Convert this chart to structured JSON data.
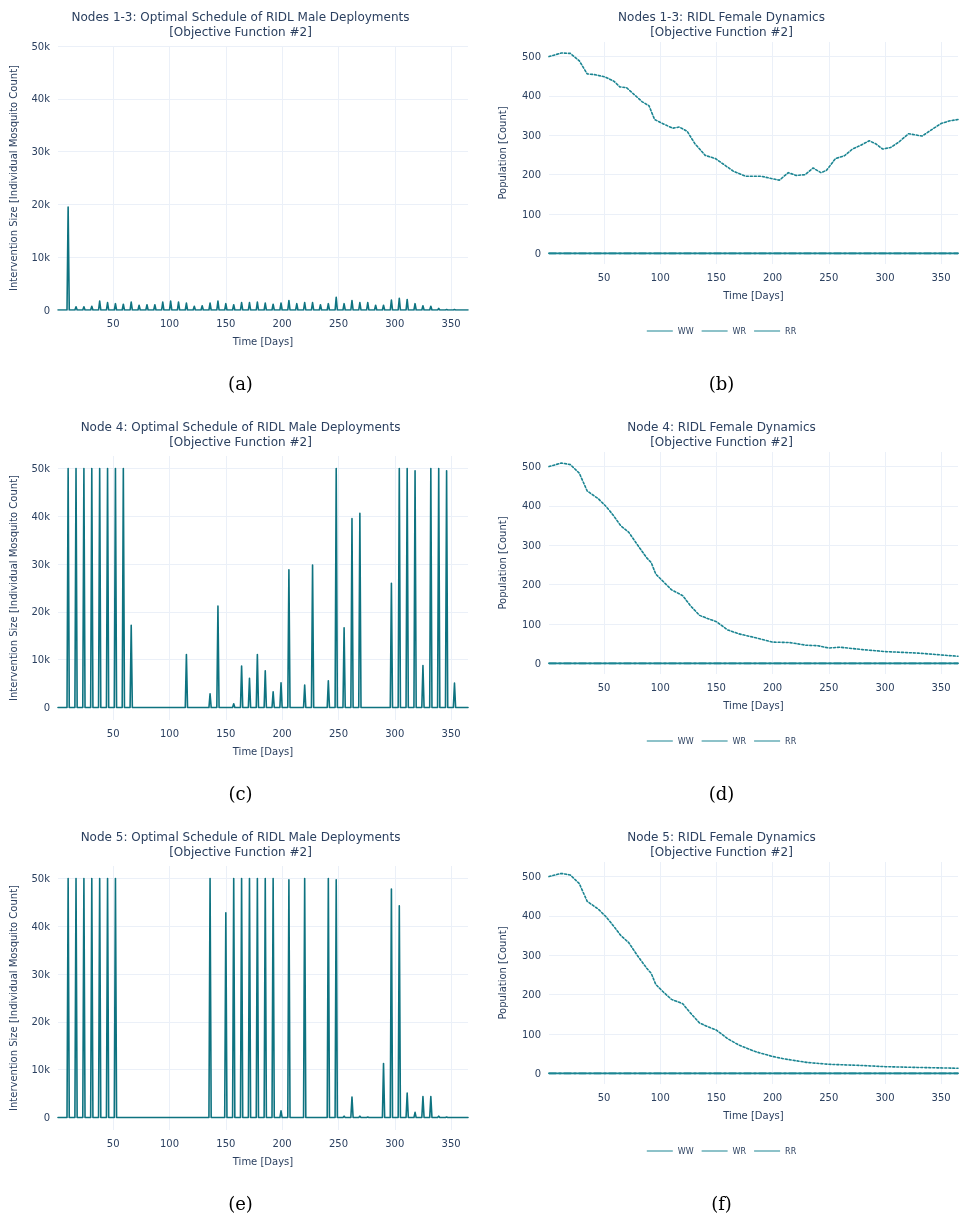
{
  "chart_data": [
    {
      "type": "line",
      "title": "Nodes 1-3: Optimal Schedule of RIDL Male Deployments\n[Objective Function #2]",
      "xlabel": "Time [Days]",
      "ylabel": "Intervention Size [Individual Mosquito Count]",
      "annotations": [
        "(a)"
      ],
      "x": [
        1,
        9,
        10,
        11,
        16,
        17,
        18,
        23,
        24,
        25,
        30,
        31,
        32,
        37,
        38,
        39,
        44,
        45,
        46,
        51,
        52,
        53,
        58,
        59,
        60,
        65,
        66,
        67,
        72,
        73,
        74,
        79,
        80,
        81,
        86,
        87,
        88,
        93,
        94,
        95,
        100,
        101,
        102,
        107,
        108,
        109,
        114,
        115,
        116,
        121,
        122,
        123,
        128,
        129,
        130,
        135,
        136,
        137,
        142,
        143,
        144,
        149,
        150,
        151,
        156,
        157,
        158,
        163,
        164,
        165,
        170,
        171,
        172,
        177,
        178,
        179,
        184,
        185,
        186,
        191,
        192,
        193,
        198,
        199,
        200,
        205,
        206,
        207,
        212,
        213,
        214,
        219,
        220,
        221,
        226,
        227,
        228,
        233,
        234,
        235,
        240,
        241,
        242,
        247,
        248,
        249,
        254,
        255,
        256,
        261,
        262,
        263,
        268,
        269,
        270,
        275,
        276,
        277,
        282,
        283,
        284,
        289,
        290,
        291,
        296,
        297,
        298,
        303,
        304,
        305,
        310,
        311,
        312,
        317,
        318,
        319,
        324,
        325,
        326,
        331,
        332,
        333,
        338,
        339,
        340,
        345,
        346,
        347,
        352,
        353,
        354,
        365
      ],
      "series": [
        {
          "color": "#0e7380",
          "values": [
            0,
            0,
            19500,
            0,
            0,
            600,
            0,
            0,
            600,
            0,
            0,
            700,
            0,
            0,
            1700,
            0,
            0,
            1400,
            0,
            0,
            1200,
            0,
            0,
            1100,
            0,
            0,
            1500,
            0,
            0,
            900,
            0,
            0,
            1000,
            0,
            0,
            1000,
            0,
            0,
            1500,
            0,
            0,
            1700,
            0,
            0,
            1500,
            0,
            0,
            1300,
            0,
            0,
            700,
            0,
            0,
            800,
            0,
            0,
            1300,
            0,
            0,
            1700,
            0,
            0,
            1200,
            0,
            0,
            1000,
            0,
            0,
            1400,
            0,
            0,
            1400,
            0,
            0,
            1500,
            0,
            0,
            1300,
            0,
            0,
            1100,
            0,
            0,
            1300,
            0,
            0,
            1800,
            0,
            0,
            1200,
            0,
            0,
            1400,
            0,
            0,
            1400,
            0,
            0,
            1000,
            0,
            0,
            1200,
            0,
            0,
            2400,
            0,
            0,
            1200,
            0,
            0,
            1800,
            0,
            0,
            1400,
            0,
            0,
            1400,
            0,
            0,
            900,
            0,
            0,
            900,
            0,
            0,
            1900,
            0,
            0,
            2200,
            0,
            0,
            2000,
            0,
            0,
            1200,
            0,
            0,
            800,
            0,
            0,
            700,
            0,
            0,
            300,
            0,
            0,
            100,
            0,
            0,
            100,
            0,
            0
          ]
        }
      ],
      "xlim": [
        1,
        365
      ],
      "xticks": [
        50,
        100,
        150,
        200,
        250,
        300,
        350
      ],
      "ylim": [
        0,
        50000
      ],
      "yticks": [
        0,
        {
          "value": 10000,
          "label": "10k"
        },
        {
          "value": 20000,
          "label": "20k"
        },
        {
          "value": 30000,
          "label": "30k"
        },
        {
          "value": 40000,
          "label": "40k"
        },
        {
          "value": 50000,
          "label": "50k"
        }
      ],
      "grid": true,
      "legend": false
    },
    {
      "type": "line",
      "title": "Nodes 1-3: RIDL Female Dynamics\n[Objective Function #2]",
      "xlabel": "Time [Days]",
      "ylabel": "Population [Count]",
      "annotations": [
        "(b)"
      ],
      "series": [
        {
          "name": "WW",
          "color": "#1b8592",
          "line_style": "dotted",
          "x": [
            1,
            12,
            20,
            28,
            35,
            42,
            51,
            59,
            64,
            70,
            77,
            84,
            90,
            95,
            102,
            111,
            117,
            124,
            131,
            140,
            149,
            158,
            165,
            176,
            190,
            199,
            206,
            214,
            221,
            229,
            236,
            243,
            248,
            256,
            264,
            271,
            278,
            286,
            292,
            298,
            305,
            312,
            321,
            333,
            343,
            350,
            358,
            365
          ],
          "values": [
            500,
            509,
            508,
            489,
            456,
            454,
            448,
            437,
            423,
            421,
            403,
            385,
            375,
            340,
            330,
            318,
            321,
            310,
            278,
            249,
            241,
            223,
            209,
            196,
            196,
            190,
            186,
            205,
            198,
            200,
            217,
            205,
            211,
            241,
            248,
            265,
            274,
            286,
            278,
            265,
            269,
            282,
            304,
            298,
            317,
            330,
            337,
            340
          ]
        },
        {
          "name": "WR",
          "color": "#1b8592",
          "line_style": "dashed",
          "x": [
            1,
            365
          ],
          "values": [
            0,
            0
          ]
        },
        {
          "name": "RR",
          "color": "#1b8592",
          "line_style": "solid",
          "x": [
            1,
            365
          ],
          "values": [
            0,
            0
          ]
        }
      ],
      "xlim": [
        1,
        365
      ],
      "xticks": [
        50,
        100,
        150,
        200,
        250,
        300,
        350
      ],
      "ylim": [
        -27,
        537
      ],
      "yticks": [
        0,
        100,
        200,
        300,
        400,
        500
      ],
      "grid": true,
      "legend": "bottom"
    },
    {
      "type": "line",
      "title": "Node 4: Optimal Schedule of RIDL Male Deployments\n[Objective Function #2]",
      "xlabel": "Time [Days]",
      "ylabel": "Intervention Size [Individual Mosquito Count]",
      "annotations": [
        "(c)"
      ],
      "x": [
        1,
        9,
        10,
        11,
        16,
        17,
        18,
        23,
        24,
        25,
        30,
        31,
        32,
        37,
        38,
        39,
        44,
        45,
        46,
        51,
        52,
        53,
        58,
        59,
        60,
        65,
        66,
        67,
        114,
        115,
        116,
        135,
        136,
        137,
        142,
        143,
        144,
        156,
        157,
        158,
        163,
        164,
        165,
        170,
        171,
        172,
        177,
        178,
        179,
        184,
        185,
        186,
        191,
        192,
        193,
        198,
        199,
        200,
        205,
        206,
        207,
        219,
        220,
        221,
        226,
        227,
        228,
        240,
        241,
        242,
        247,
        248,
        249,
        254,
        255,
        256,
        261,
        262,
        263,
        268,
        269,
        270,
        296,
        297,
        298,
        303,
        304,
        305,
        310,
        311,
        312,
        317,
        318,
        319,
        324,
        325,
        326,
        331,
        332,
        333,
        338,
        339,
        340,
        345,
        346,
        347,
        352,
        353,
        354,
        365
      ],
      "series": [
        {
          "color": "#0e7380",
          "values": [
            0,
            0,
            50000,
            0,
            0,
            50000,
            0,
            0,
            50000,
            0,
            0,
            50000,
            0,
            0,
            50000,
            0,
            0,
            50000,
            0,
            0,
            50000,
            0,
            0,
            50000,
            0,
            0,
            17200,
            0,
            0,
            11100,
            0,
            0,
            2900,
            0,
            0,
            21200,
            0,
            0,
            800,
            0,
            0,
            8700,
            0,
            0,
            6100,
            0,
            0,
            11100,
            0,
            0,
            7700,
            0,
            0,
            3300,
            0,
            0,
            5200,
            0,
            0,
            28800,
            0,
            0,
            4700,
            0,
            0,
            29800,
            0,
            0,
            5600,
            0,
            0,
            50000,
            0,
            0,
            16700,
            0,
            0,
            39500,
            0,
            0,
            40600,
            0,
            0,
            26000,
            0,
            0,
            50000,
            0,
            0,
            50000,
            0,
            0,
            49500,
            0,
            0,
            8800,
            0,
            0,
            50000,
            0,
            0,
            50000,
            0,
            0,
            49500,
            0,
            0,
            5100,
            0,
            0
          ]
        }
      ],
      "xlim": [
        1,
        365
      ],
      "xticks": [
        50,
        100,
        150,
        200,
        250,
        300,
        350
      ],
      "ylim": [
        -2600,
        52600
      ],
      "yticks": [
        0,
        {
          "value": 10000,
          "label": "10k"
        },
        {
          "value": 20000,
          "label": "20k"
        },
        {
          "value": 30000,
          "label": "30k"
        },
        {
          "value": 40000,
          "label": "40k"
        },
        {
          "value": 50000,
          "label": "50k"
        }
      ],
      "grid": true,
      "legend": false
    },
    {
      "type": "line",
      "title": "Node 4: RIDL Female Dynamics\n[Objective Function #2]",
      "xlabel": "Time [Days]",
      "ylabel": "Population [Count]",
      "annotations": [
        "(d)"
      ],
      "series": [
        {
          "name": "WW",
          "color": "#1b8592",
          "line_style": "dotted",
          "x": [
            1,
            12,
            20,
            28,
            35,
            45,
            52,
            58,
            65,
            72,
            80,
            88,
            92,
            96,
            103,
            110,
            120,
            127,
            135,
            142,
            150,
            160,
            170,
            185,
            200,
            215,
            230,
            240,
            250,
            260,
            280,
            300,
            330,
            365
          ],
          "values": [
            500,
            509,
            505,
            483,
            438,
            418,
            398,
            377,
            349,
            333,
            300,
            268,
            256,
            227,
            207,
            187,
            172,
            146,
            122,
            114,
            106,
            85,
            75,
            65,
            54,
            53,
            46,
            45,
            39,
            41,
            35,
            30,
            26,
            18
          ]
        },
        {
          "name": "WR",
          "color": "#1b8592",
          "line_style": "dashed",
          "x": [
            1,
            365
          ],
          "values": [
            0,
            0
          ]
        },
        {
          "name": "RR",
          "color": "#1b8592",
          "line_style": "solid",
          "x": [
            1,
            365
          ],
          "values": [
            0,
            0
          ]
        }
      ],
      "xlim": [
        1,
        365
      ],
      "xticks": [
        50,
        100,
        150,
        200,
        250,
        300,
        350
      ],
      "ylim": [
        -27,
        537
      ],
      "yticks": [
        0,
        100,
        200,
        300,
        400,
        500
      ],
      "grid": true,
      "legend": "bottom"
    },
    {
      "type": "line",
      "title": "Node 5: Optimal Schedule of RIDL Male Deployments\n[Objective Function #2]",
      "xlabel": "Time [Days]",
      "ylabel": "Intervention Size [Individual Mosquito Count]",
      "annotations": [
        "(e)"
      ],
      "x": [
        1,
        9,
        10,
        11,
        16,
        17,
        18,
        23,
        24,
        25,
        30,
        31,
        32,
        37,
        38,
        39,
        44,
        45,
        46,
        51,
        52,
        53,
        135,
        136,
        137,
        149,
        150,
        151,
        156,
        157,
        158,
        163,
        164,
        165,
        170,
        171,
        172,
        177,
        178,
        179,
        184,
        185,
        186,
        191,
        192,
        193,
        198,
        199,
        200,
        205,
        206,
        207,
        219,
        220,
        221,
        240,
        241,
        242,
        247,
        248,
        249,
        254,
        255,
        256,
        261,
        262,
        263,
        268,
        269,
        270,
        275,
        276,
        277,
        289,
        290,
        291,
        296,
        297,
        298,
        303,
        304,
        305,
        310,
        311,
        312,
        317,
        318,
        319,
        324,
        325,
        326,
        331,
        332,
        333,
        338,
        339,
        340,
        345,
        346,
        347,
        365
      ],
      "series": [
        {
          "color": "#0e7380",
          "values": [
            0,
            0,
            50000,
            0,
            0,
            50000,
            0,
            0,
            50000,
            0,
            0,
            50000,
            0,
            0,
            50000,
            0,
            0,
            50000,
            0,
            0,
            50000,
            0,
            0,
            50000,
            0,
            0,
            42800,
            0,
            0,
            50000,
            0,
            0,
            50000,
            0,
            0,
            50000,
            0,
            0,
            50000,
            0,
            0,
            50000,
            0,
            0,
            50000,
            0,
            0,
            1400,
            0,
            0,
            49700,
            0,
            0,
            50000,
            0,
            0,
            50000,
            0,
            0,
            49700,
            0,
            0,
            300,
            0,
            0,
            4300,
            0,
            0,
            300,
            0,
            0,
            100,
            0,
            0,
            11300,
            0,
            0,
            47800,
            0,
            0,
            44300,
            0,
            0,
            5100,
            0,
            0,
            1100,
            0,
            0,
            4400,
            0,
            0,
            4400,
            0,
            0,
            300,
            0,
            0,
            100,
            0,
            0
          ]
        }
      ],
      "xlim": [
        1,
        365
      ],
      "xticks": [
        50,
        100,
        150,
        200,
        250,
        300,
        350
      ],
      "ylim": [
        -2600,
        52600
      ],
      "yticks": [
        0,
        {
          "value": 10000,
          "label": "10k"
        },
        {
          "value": 20000,
          "label": "20k"
        },
        {
          "value": 30000,
          "label": "30k"
        },
        {
          "value": 40000,
          "label": "40k"
        },
        {
          "value": 50000,
          "label": "50k"
        }
      ],
      "grid": true,
      "legend": false
    },
    {
      "type": "line",
      "title": "Node 5: RIDL Female Dynamics\n[Objective Function #2]",
      "xlabel": "Time [Days]",
      "ylabel": "Population [Count]",
      "annotations": [
        "(f)"
      ],
      "series": [
        {
          "name": "WW",
          "color": "#1b8592",
          "line_style": "dotted",
          "x": [
            1,
            12,
            20,
            28,
            35,
            45,
            52,
            58,
            65,
            72,
            80,
            88,
            92,
            96,
            103,
            110,
            120,
            127,
            135,
            142,
            150,
            160,
            170,
            185,
            200,
            210,
            230,
            250,
            280,
            300,
            330,
            365
          ],
          "values": [
            500,
            508,
            504,
            482,
            437,
            417,
            397,
            376,
            350,
            332,
            298,
            267,
            254,
            226,
            206,
            188,
            177,
            153,
            128,
            119,
            110,
            88,
            72,
            55,
            43,
            37,
            28,
            23,
            20,
            17,
            15,
            13
          ]
        },
        {
          "name": "WR",
          "color": "#1b8592",
          "line_style": "dashed",
          "x": [
            1,
            365
          ],
          "values": [
            0,
            0
          ]
        },
        {
          "name": "RR",
          "color": "#1b8592",
          "line_style": "solid",
          "x": [
            1,
            365
          ],
          "values": [
            0,
            0
          ]
        }
      ],
      "xlim": [
        1,
        365
      ],
      "xticks": [
        50,
        100,
        150,
        200,
        250,
        300,
        350
      ],
      "ylim": [
        -27,
        537
      ],
      "yticks": [
        0,
        100,
        200,
        300,
        400,
        500
      ],
      "grid": true,
      "legend": "bottom"
    }
  ]
}
